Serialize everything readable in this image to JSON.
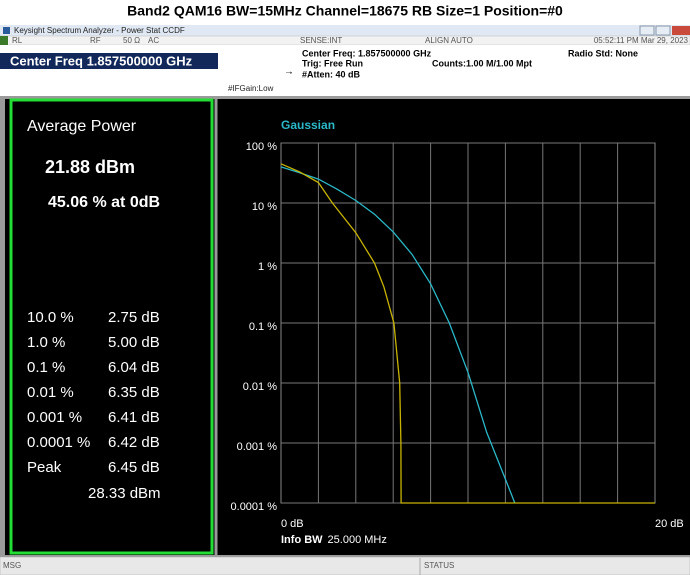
{
  "page_title": "Band2 QAM16 BW=15MHz Channel=18675 RB Size=1 Position=#0",
  "window": {
    "title": "Keysight Spectrum Analyzer - Power Stat CCDF",
    "status_bar": [
      "RL",
      "RF",
      "50 Ω",
      "AC",
      "SENSE:INT",
      "ALIGN AUTO",
      "05:52:11 PM Mar 29, 2023"
    ]
  },
  "settings": {
    "center_freq": "Center Freq 1.857500000 GHz",
    "center_freq_info": "Center Freq: 1.857500000 GHz",
    "trig": "Trig: Free Run",
    "if_gain": "#IFGain:Low",
    "atten": "#Atten: 40 dB",
    "counts": "Counts:1.00 M/1.00 Mpt",
    "radio_std": "Radio Std: None"
  },
  "results": {
    "heading": "Average Power",
    "average_power": "21.88 dBm",
    "at_0db": "45.06 % at 0dB",
    "rows": [
      [
        "10.0 %",
        "2.75 dB"
      ],
      [
        "1.0 %",
        "5.00 dB"
      ],
      [
        "0.1 %",
        "6.04 dB"
      ],
      [
        "0.01 %",
        "6.35 dB"
      ],
      [
        "0.001 %",
        "6.41 dB"
      ],
      [
        "0.0001 %",
        "6.42 dB"
      ],
      [
        "Peak",
        "6.45 dB"
      ]
    ],
    "peak_power": "28.33 dBm"
  },
  "chart_data": {
    "type": "line",
    "log_y": true,
    "grid": true,
    "x_grid_divisions": 10,
    "xlim": [
      0,
      20
    ],
    "ylim": [
      0.0001,
      100
    ],
    "xticks": [
      {
        "value": 0,
        "label": "0 dB"
      },
      {
        "value": 20,
        "label": "20 dB"
      }
    ],
    "yticks": [
      {
        "value": 100,
        "label": "100 %"
      },
      {
        "value": 10,
        "label": "10 %"
      },
      {
        "value": 1,
        "label": "1 %"
      },
      {
        "value": 0.1,
        "label": "0.1 %"
      },
      {
        "value": 0.01,
        "label": "0.01 %"
      },
      {
        "value": 0.001,
        "label": "0.001 %"
      },
      {
        "value": 0.0001,
        "label": "0.0001 %"
      }
    ],
    "info_bw_label": "Info BW",
    "info_bw": "25.000 MHz",
    "series": [
      {
        "name": "Gaussian",
        "color": "#2bb8c8",
        "x": [
          0,
          1,
          2,
          3,
          4,
          5,
          6,
          7,
          8,
          9,
          10,
          11,
          12,
          12.5
        ],
        "values": [
          40,
          32,
          25,
          17,
          11,
          6.5,
          3.3,
          1.4,
          0.45,
          0.1,
          0.015,
          0.0015,
          0.00025,
          0.0001
        ]
      },
      {
        "color": "#c8b400",
        "x": [
          0,
          1,
          2,
          2.75,
          4,
          5,
          5.5,
          6.04,
          6.35,
          6.41,
          6.42,
          20
        ],
        "values": [
          45.06,
          33,
          22,
          10,
          3.2,
          1,
          0.4,
          0.1,
          0.01,
          0.001,
          0.0001,
          0.0001
        ]
      }
    ]
  },
  "footer": {
    "msg": "MSG",
    "status": "STATUS"
  }
}
